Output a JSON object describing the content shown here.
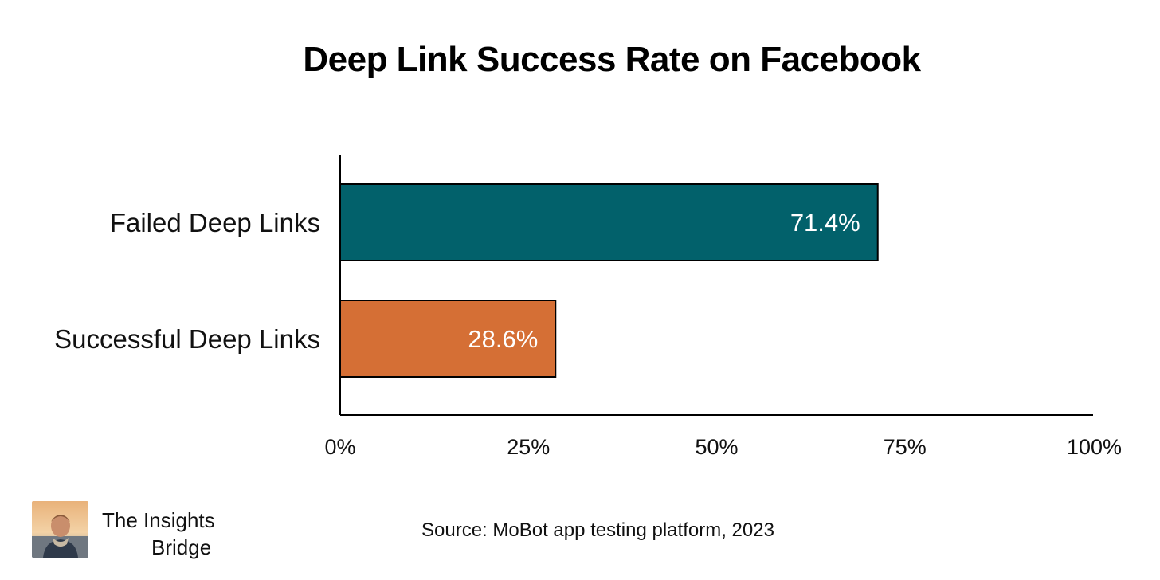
{
  "title": "Deep Link Success Rate on Facebook",
  "chart_data": {
    "type": "bar",
    "orientation": "horizontal",
    "categories": [
      "Failed Deep Links",
      "Successful Deep Links"
    ],
    "values": [
      71.4,
      28.6
    ],
    "value_labels": [
      "71.4%",
      "28.6%"
    ],
    "colors": [
      "#02616b",
      "#d56f35"
    ],
    "xlim": [
      0,
      100
    ],
    "x_ticks": [
      0,
      25,
      50,
      75,
      100
    ],
    "x_tick_labels": [
      "0%",
      "25%",
      "50%",
      "75%",
      "100%"
    ],
    "grid": false,
    "legend": "none"
  },
  "branding": {
    "line1": "The Insights",
    "line2": "Bridge",
    "logo_icon": "author-photo-icon"
  },
  "source": "Source: MoBot app testing platform, 2023"
}
